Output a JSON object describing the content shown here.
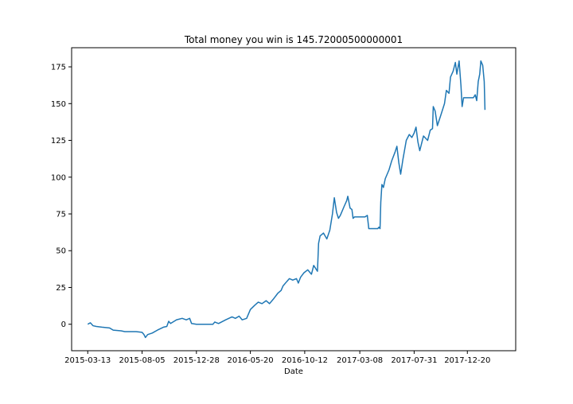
{
  "chart_data": {
    "type": "line",
    "title": "Total money you win is 145.72000500000001",
    "xlabel": "Date",
    "ylabel": "",
    "x_tick_labels": [
      "2015-03-13",
      "2015-08-05",
      "2015-12-28",
      "2016-05-20",
      "2016-10-12",
      "2017-03-08",
      "2017-07-31",
      "2017-12-20"
    ],
    "y_ticks": [
      0,
      25,
      50,
      75,
      100,
      125,
      150,
      175
    ],
    "ylim": [
      -18,
      188
    ],
    "xlim": [
      "2015-01-29",
      "2018-04-28"
    ],
    "grid": false,
    "line_color": "#1f77b4",
    "series": [
      {
        "points": [
          [
            "2015-03-13",
            0
          ],
          [
            "2015-03-20",
            1
          ],
          [
            "2015-03-27",
            -1
          ],
          [
            "2015-04-05",
            -1.5
          ],
          [
            "2015-04-20",
            -2
          ],
          [
            "2015-05-10",
            -2.5
          ],
          [
            "2015-05-20",
            -4
          ],
          [
            "2015-06-10",
            -4.5
          ],
          [
            "2015-06-20",
            -5
          ],
          [
            "2015-07-20",
            -5
          ],
          [
            "2015-08-05",
            -5.5
          ],
          [
            "2015-08-10",
            -7
          ],
          [
            "2015-08-14",
            -9
          ],
          [
            "2015-08-20",
            -7
          ],
          [
            "2015-09-01",
            -6
          ],
          [
            "2015-09-15",
            -4
          ],
          [
            "2015-10-01",
            -2
          ],
          [
            "2015-10-10",
            -1.5
          ],
          [
            "2015-10-15",
            2
          ],
          [
            "2015-10-20",
            0.5
          ],
          [
            "2015-11-05",
            3
          ],
          [
            "2015-11-20",
            4
          ],
          [
            "2015-12-01",
            3
          ],
          [
            "2015-12-10",
            4
          ],
          [
            "2015-12-15",
            0.5
          ],
          [
            "2015-12-28",
            0
          ],
          [
            "2016-02-10",
            0
          ],
          [
            "2016-02-15",
            1.5
          ],
          [
            "2016-02-25",
            0.5
          ],
          [
            "2016-03-15",
            3
          ],
          [
            "2016-04-01",
            5
          ],
          [
            "2016-04-10",
            4
          ],
          [
            "2016-04-20",
            5.5
          ],
          [
            "2016-04-28",
            3
          ],
          [
            "2016-05-10",
            4
          ],
          [
            "2016-05-20",
            10
          ],
          [
            "2016-06-01",
            13
          ],
          [
            "2016-06-10",
            15
          ],
          [
            "2016-06-20",
            14
          ],
          [
            "2016-07-01",
            16
          ],
          [
            "2016-07-10",
            14
          ],
          [
            "2016-07-20",
            17
          ],
          [
            "2016-08-01",
            21
          ],
          [
            "2016-08-10",
            23
          ],
          [
            "2016-08-15",
            26
          ],
          [
            "2016-08-25",
            29
          ],
          [
            "2016-09-01",
            31
          ],
          [
            "2016-09-10",
            30
          ],
          [
            "2016-09-20",
            31
          ],
          [
            "2016-09-25",
            28
          ],
          [
            "2016-10-01",
            32
          ],
          [
            "2016-10-10",
            35
          ],
          [
            "2016-10-20",
            37
          ],
          [
            "2016-10-30",
            34
          ],
          [
            "2016-11-05",
            40
          ],
          [
            "2016-11-10",
            38
          ],
          [
            "2016-11-15",
            36
          ],
          [
            "2016-11-18",
            55
          ],
          [
            "2016-11-22",
            60
          ],
          [
            "2016-12-01",
            62
          ],
          [
            "2016-12-10",
            58
          ],
          [
            "2016-12-18",
            64
          ],
          [
            "2016-12-25",
            75
          ],
          [
            "2016-12-30",
            86
          ],
          [
            "2017-01-05",
            76
          ],
          [
            "2017-01-10",
            72
          ],
          [
            "2017-01-15",
            74
          ],
          [
            "2017-01-20",
            77
          ],
          [
            "2017-01-25",
            80
          ],
          [
            "2017-02-01",
            84
          ],
          [
            "2017-02-04",
            87
          ],
          [
            "2017-02-10",
            79
          ],
          [
            "2017-02-15",
            78
          ],
          [
            "2017-02-18",
            72
          ],
          [
            "2017-02-22",
            73
          ],
          [
            "2017-03-08",
            73
          ],
          [
            "2017-03-22",
            73
          ],
          [
            "2017-03-28",
            74
          ],
          [
            "2017-04-01",
            65
          ],
          [
            "2017-04-25",
            65
          ],
          [
            "2017-04-28",
            66
          ],
          [
            "2017-05-01",
            65
          ],
          [
            "2017-05-03",
            83
          ],
          [
            "2017-05-06",
            95
          ],
          [
            "2017-05-10",
            93
          ],
          [
            "2017-05-15",
            99
          ],
          [
            "2017-05-25",
            105
          ],
          [
            "2017-06-01",
            111
          ],
          [
            "2017-06-10",
            117
          ],
          [
            "2017-06-15",
            121
          ],
          [
            "2017-06-20",
            110
          ],
          [
            "2017-06-25",
            102
          ],
          [
            "2017-07-01",
            112
          ],
          [
            "2017-07-10",
            125
          ],
          [
            "2017-07-18",
            129
          ],
          [
            "2017-07-25",
            127
          ],
          [
            "2017-07-31",
            130
          ],
          [
            "2017-08-05",
            134
          ],
          [
            "2017-08-10",
            124
          ],
          [
            "2017-08-15",
            118
          ],
          [
            "2017-08-25",
            128
          ],
          [
            "2017-09-05",
            125
          ],
          [
            "2017-09-12",
            132
          ],
          [
            "2017-09-18",
            133
          ],
          [
            "2017-09-20",
            148
          ],
          [
            "2017-09-25",
            145
          ],
          [
            "2017-10-01",
            135
          ],
          [
            "2017-10-10",
            142
          ],
          [
            "2017-10-20",
            150
          ],
          [
            "2017-10-25",
            159
          ],
          [
            "2017-11-01",
            157
          ],
          [
            "2017-11-05",
            168
          ],
          [
            "2017-11-12",
            172
          ],
          [
            "2017-11-18",
            178
          ],
          [
            "2017-11-22",
            170
          ],
          [
            "2017-11-28",
            179
          ],
          [
            "2017-12-03",
            162
          ],
          [
            "2017-12-06",
            148
          ],
          [
            "2017-12-10",
            154
          ],
          [
            "2017-12-20",
            154
          ],
          [
            "2018-01-05",
            154
          ],
          [
            "2018-01-10",
            156
          ],
          [
            "2018-01-14",
            152
          ],
          [
            "2018-01-18",
            165
          ],
          [
            "2018-01-22",
            170
          ],
          [
            "2018-01-25",
            179
          ],
          [
            "2018-01-30",
            176
          ],
          [
            "2018-02-03",
            165
          ],
          [
            "2018-02-05",
            145.72
          ]
        ]
      }
    ]
  }
}
